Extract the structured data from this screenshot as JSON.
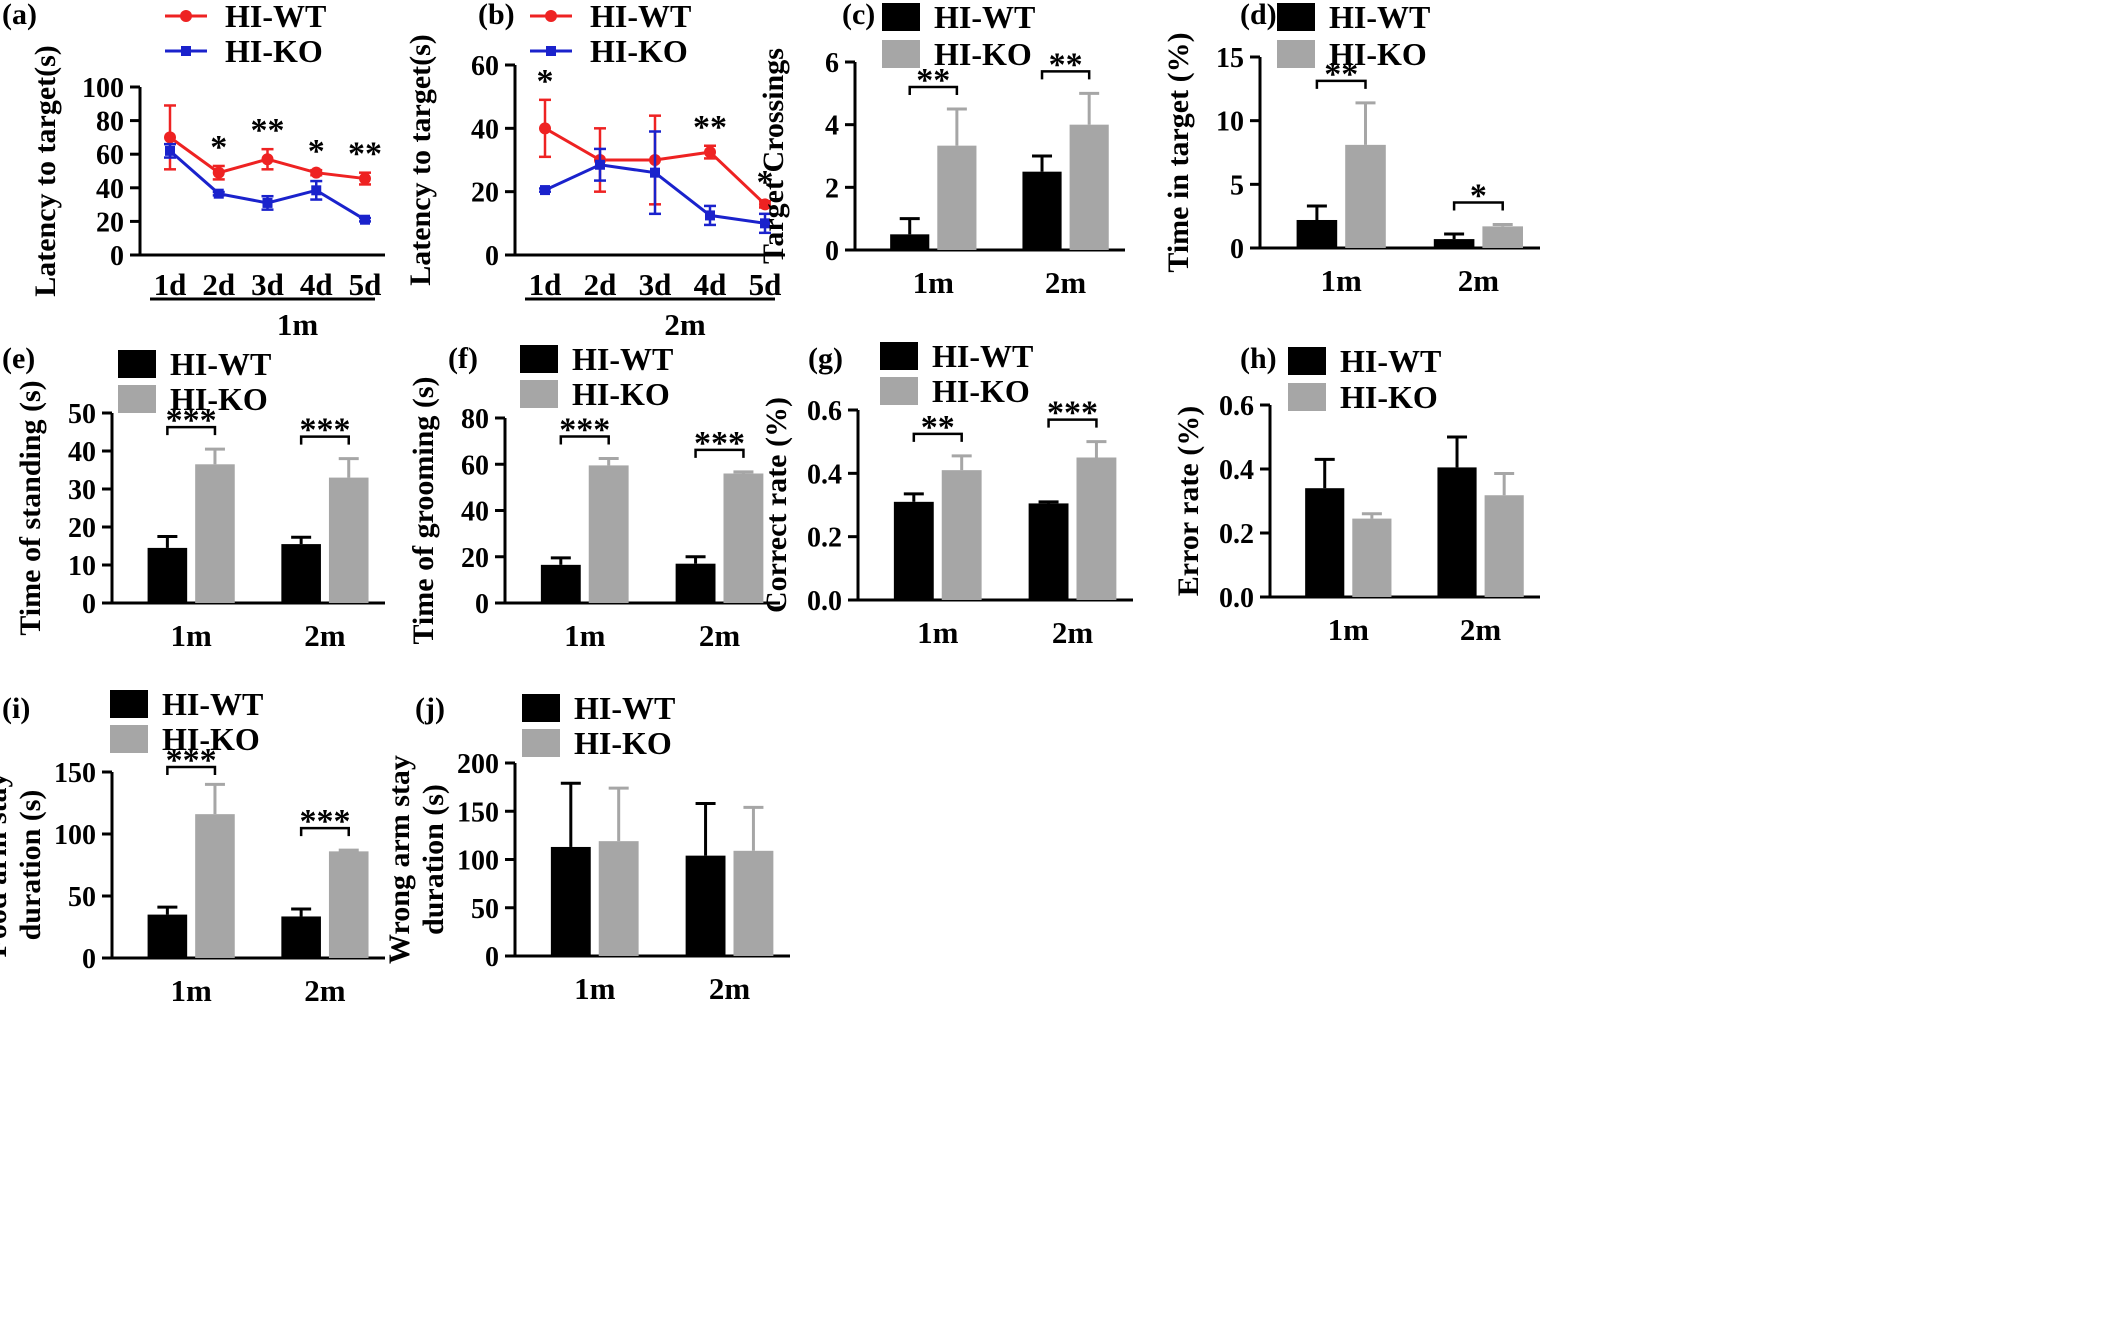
{
  "colors": {
    "wt_line": "#ee2222",
    "ko_line": "#1a22cc",
    "wt_bar": "#000000",
    "ko_bar": "#a6a6a6"
  },
  "chart_data": [
    {
      "id": "a",
      "panel_label": "(a)",
      "type": "line",
      "ylabel": "Latency  to target(s)",
      "ylim": [
        0,
        100
      ],
      "yticks": [
        "0",
        "20",
        "40",
        "60",
        "80",
        "100"
      ],
      "categories": [
        "1d",
        "2d",
        "3d",
        "4d",
        "5d"
      ],
      "group_label": "1m",
      "series": [
        {
          "name": "HI-WT",
          "color": "#ee2222",
          "marker": "circle",
          "values": [
            70,
            49,
            57,
            49,
            45.5
          ],
          "errors": [
            19,
            4,
            6,
            1.5,
            3.5
          ]
        },
        {
          "name": "HI-KO",
          "color": "#1a22cc",
          "marker": "square",
          "values": [
            62,
            36.5,
            31,
            38.5,
            21
          ],
          "errors": [
            4,
            1,
            4,
            5.5,
            1
          ]
        }
      ],
      "annotations": [
        {
          "index": 1,
          "text": "*"
        },
        {
          "index": 2,
          "text": "**"
        },
        {
          "index": 3,
          "text": "*"
        },
        {
          "index": 4,
          "text": "**"
        }
      ]
    },
    {
      "id": "b",
      "panel_label": "(b)",
      "type": "line",
      "ylabel": "Latency  to target(s)",
      "ylim": [
        0,
        60
      ],
      "yticks": [
        "0",
        "20",
        "40",
        "60"
      ],
      "categories": [
        "1d",
        "2d",
        "3d",
        "4d",
        "5d"
      ],
      "group_label": "2m",
      "series": [
        {
          "name": "HI-WT",
          "color": "#ee2222",
          "marker": "circle",
          "values": [
            40,
            30,
            30,
            32.5,
            16
          ],
          "errors": [
            9,
            10,
            14,
            2,
            1
          ]
        },
        {
          "name": "HI-KO",
          "color": "#1a22cc",
          "marker": "square",
          "values": [
            20.5,
            28.5,
            26,
            12.5,
            10
          ],
          "errors": [
            0.5,
            5,
            13,
            3,
            3
          ]
        }
      ],
      "annotations": [
        {
          "index": 0,
          "text": "*"
        },
        {
          "index": 3,
          "text": "**"
        },
        {
          "index": 4,
          "text": "*"
        }
      ]
    },
    {
      "id": "c",
      "panel_label": "(c)",
      "type": "bar",
      "ylabel": "Target Crossings",
      "ylim": [
        0,
        6
      ],
      "yticks": [
        "0",
        "2",
        "4",
        "6"
      ],
      "categories": [
        "1m",
        "2m"
      ],
      "series": [
        {
          "name": "HI-WT",
          "color": "#000000",
          "values": [
            0.5,
            2.5
          ],
          "errors": [
            0.5,
            0.5
          ]
        },
        {
          "name": "HI-KO",
          "color": "#a6a6a6",
          "values": [
            3.33,
            4.0
          ],
          "errors": [
            1.17,
            1.0
          ]
        }
      ],
      "annotations": [
        {
          "index": 0,
          "text": "**"
        },
        {
          "index": 1,
          "text": "**"
        }
      ]
    },
    {
      "id": "d",
      "panel_label": "(d)",
      "type": "bar",
      "ylabel": "Time in target (%)",
      "ylim": [
        0,
        15
      ],
      "yticks": [
        "0",
        "5",
        "10",
        "15"
      ],
      "categories": [
        "1m",
        "2m"
      ],
      "series": [
        {
          "name": "HI-WT",
          "color": "#000000",
          "values": [
            2.2,
            0.7
          ],
          "errors": [
            1.1,
            0.4
          ]
        },
        {
          "name": "HI-KO",
          "color": "#a6a6a6",
          "values": [
            8.1,
            1.7
          ],
          "errors": [
            3.3,
            0.15
          ]
        }
      ],
      "annotations": [
        {
          "index": 0,
          "text": "**"
        },
        {
          "index": 1,
          "text": "*"
        }
      ]
    },
    {
      "id": "e",
      "panel_label": "(e)",
      "type": "bar",
      "ylabel": "Time of standing (s)",
      "ylim": [
        0,
        50
      ],
      "yticks": [
        "0",
        "10",
        "20",
        "30",
        "40",
        "50"
      ],
      "categories": [
        "1m",
        "2m"
      ],
      "series": [
        {
          "name": "HI-WT",
          "color": "#000000",
          "values": [
            14.5,
            15.5
          ],
          "errors": [
            3,
            1.8
          ]
        },
        {
          "name": "HI-KO",
          "color": "#a6a6a6",
          "values": [
            36.5,
            33
          ],
          "errors": [
            4,
            5
          ]
        }
      ],
      "annotations": [
        {
          "index": 0,
          "text": "***"
        },
        {
          "index": 1,
          "text": "***"
        }
      ]
    },
    {
      "id": "f",
      "panel_label": "(f)",
      "type": "bar",
      "ylabel": "Time of grooming (s)",
      "ylim": [
        0,
        80
      ],
      "yticks": [
        "0",
        "20",
        "40",
        "60",
        "80"
      ],
      "categories": [
        "1m",
        "2m"
      ],
      "series": [
        {
          "name": "HI-WT",
          "color": "#000000",
          "values": [
            16.5,
            17
          ],
          "errors": [
            3,
            3
          ]
        },
        {
          "name": "HI-KO",
          "color": "#a6a6a6",
          "values": [
            59.5,
            56
          ],
          "errors": [
            3,
            0.7
          ]
        }
      ],
      "annotations": [
        {
          "index": 0,
          "text": "***"
        },
        {
          "index": 1,
          "text": "***"
        }
      ]
    },
    {
      "id": "g",
      "panel_label": "(g)",
      "type": "bar",
      "ylabel": "Correct rate (%)",
      "ylim": [
        0,
        0.6
      ],
      "yticks": [
        "0.0",
        "0.2",
        "0.4",
        "0.6"
      ],
      "categories": [
        "1m",
        "2m"
      ],
      "series": [
        {
          "name": "HI-WT",
          "color": "#000000",
          "values": [
            0.31,
            0.305
          ],
          "errors": [
            0.025,
            0.005
          ]
        },
        {
          "name": "HI-KO",
          "color": "#a6a6a6",
          "values": [
            0.41,
            0.45
          ],
          "errors": [
            0.045,
            0.05
          ]
        }
      ],
      "annotations": [
        {
          "index": 0,
          "text": "**"
        },
        {
          "index": 1,
          "text": "***"
        }
      ]
    },
    {
      "id": "h",
      "panel_label": "(h)",
      "type": "bar",
      "ylabel": "Error rate (%)",
      "ylim": [
        0,
        0.6
      ],
      "yticks": [
        "0.0",
        "0.2",
        "0.4",
        "0.6"
      ],
      "categories": [
        "1m",
        "2m"
      ],
      "series": [
        {
          "name": "HI-WT",
          "color": "#000000",
          "values": [
            0.34,
            0.405
          ],
          "errors": [
            0.09,
            0.095
          ]
        },
        {
          "name": "HI-KO",
          "color": "#a6a6a6",
          "values": [
            0.245,
            0.318
          ],
          "errors": [
            0.015,
            0.068
          ]
        }
      ],
      "annotations": []
    },
    {
      "id": "i",
      "panel_label": "(i)",
      "type": "bar",
      "ylabel": "Food arm stay\nduration (s)",
      "ylim": [
        0,
        150
      ],
      "yticks": [
        "0",
        "50",
        "100",
        "150"
      ],
      "categories": [
        "1m",
        "2m"
      ],
      "series": [
        {
          "name": "HI-WT",
          "color": "#000000",
          "values": [
            35,
            33.5
          ],
          "errors": [
            6,
            6
          ]
        },
        {
          "name": "HI-KO",
          "color": "#a6a6a6",
          "values": [
            116,
            86
          ],
          "errors": [
            24,
            1
          ]
        }
      ],
      "annotations": [
        {
          "index": 0,
          "text": "***"
        },
        {
          "index": 1,
          "text": "***"
        }
      ]
    },
    {
      "id": "j",
      "panel_label": "(j)",
      "type": "bar",
      "ylabel": "Wrong arm stay\nduration (s)",
      "ylim": [
        0,
        200
      ],
      "yticks": [
        "0",
        "50",
        "100",
        "150",
        "200"
      ],
      "categories": [
        "1m",
        "2m"
      ],
      "series": [
        {
          "name": "HI-WT",
          "color": "#000000",
          "values": [
            113,
            104
          ],
          "errors": [
            66,
            54
          ]
        },
        {
          "name": "HI-KO",
          "color": "#a6a6a6",
          "values": [
            119,
            109
          ],
          "errors": [
            55,
            45
          ]
        }
      ],
      "annotations": []
    }
  ]
}
